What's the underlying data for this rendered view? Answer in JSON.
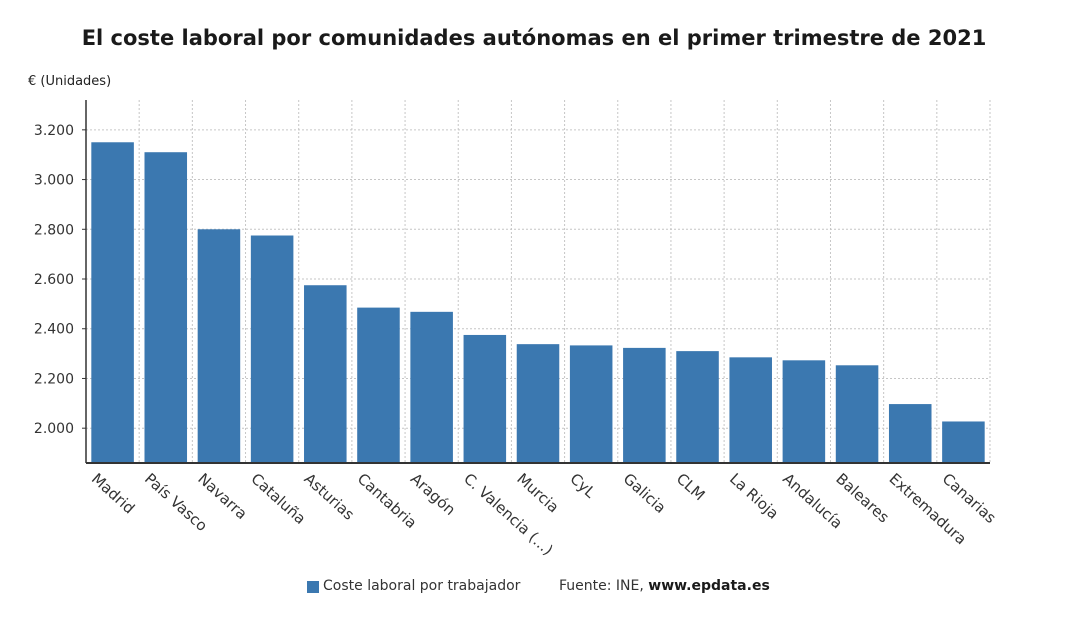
{
  "title": "El coste laboral por comunidades autónomas en el primer trimestre de 2021",
  "unit_label": "€ (Unidades)",
  "legend_label": "Coste laboral por trabajador",
  "source_prefix": "Fuente: INE,",
  "source_site": "www.epdata.es",
  "colors": {
    "bar": "#3b78b0",
    "grid": "#c6c6c6",
    "axis": "#333333"
  },
  "chart_data": {
    "type": "bar",
    "title": "El coste laboral por comunidades autónomas en el primer trimestre de 2021",
    "ylabel": "€ (Unidades)",
    "xlabel": "",
    "ylim": [
      1860,
      3320
    ],
    "yticks": [
      2000,
      2200,
      2400,
      2600,
      2800,
      3000,
      3200
    ],
    "ytick_labels": [
      "2.000",
      "2.200",
      "2.400",
      "2.600",
      "2.800",
      "3.000",
      "3.200"
    ],
    "grid": true,
    "legend": "bottom",
    "categories": [
      "Madrid",
      "País Vasco",
      "Navarra",
      "Cataluña",
      "Asturias",
      "Cantabria",
      "Aragón",
      "C. Valencia (...)",
      "Murcia",
      "CyL",
      "Galicia",
      "CLM",
      "La Rioja",
      "Andalucía",
      "Baleares",
      "Extremadura",
      "Canarias"
    ],
    "series": [
      {
        "name": "Coste laboral por trabajador",
        "values": [
          3150,
          3110,
          2800,
          2775,
          2575,
          2485,
          2468,
          2375,
          2338,
          2333,
          2323,
          2310,
          2285,
          2273,
          2253,
          2097,
          2027
        ]
      }
    ]
  }
}
